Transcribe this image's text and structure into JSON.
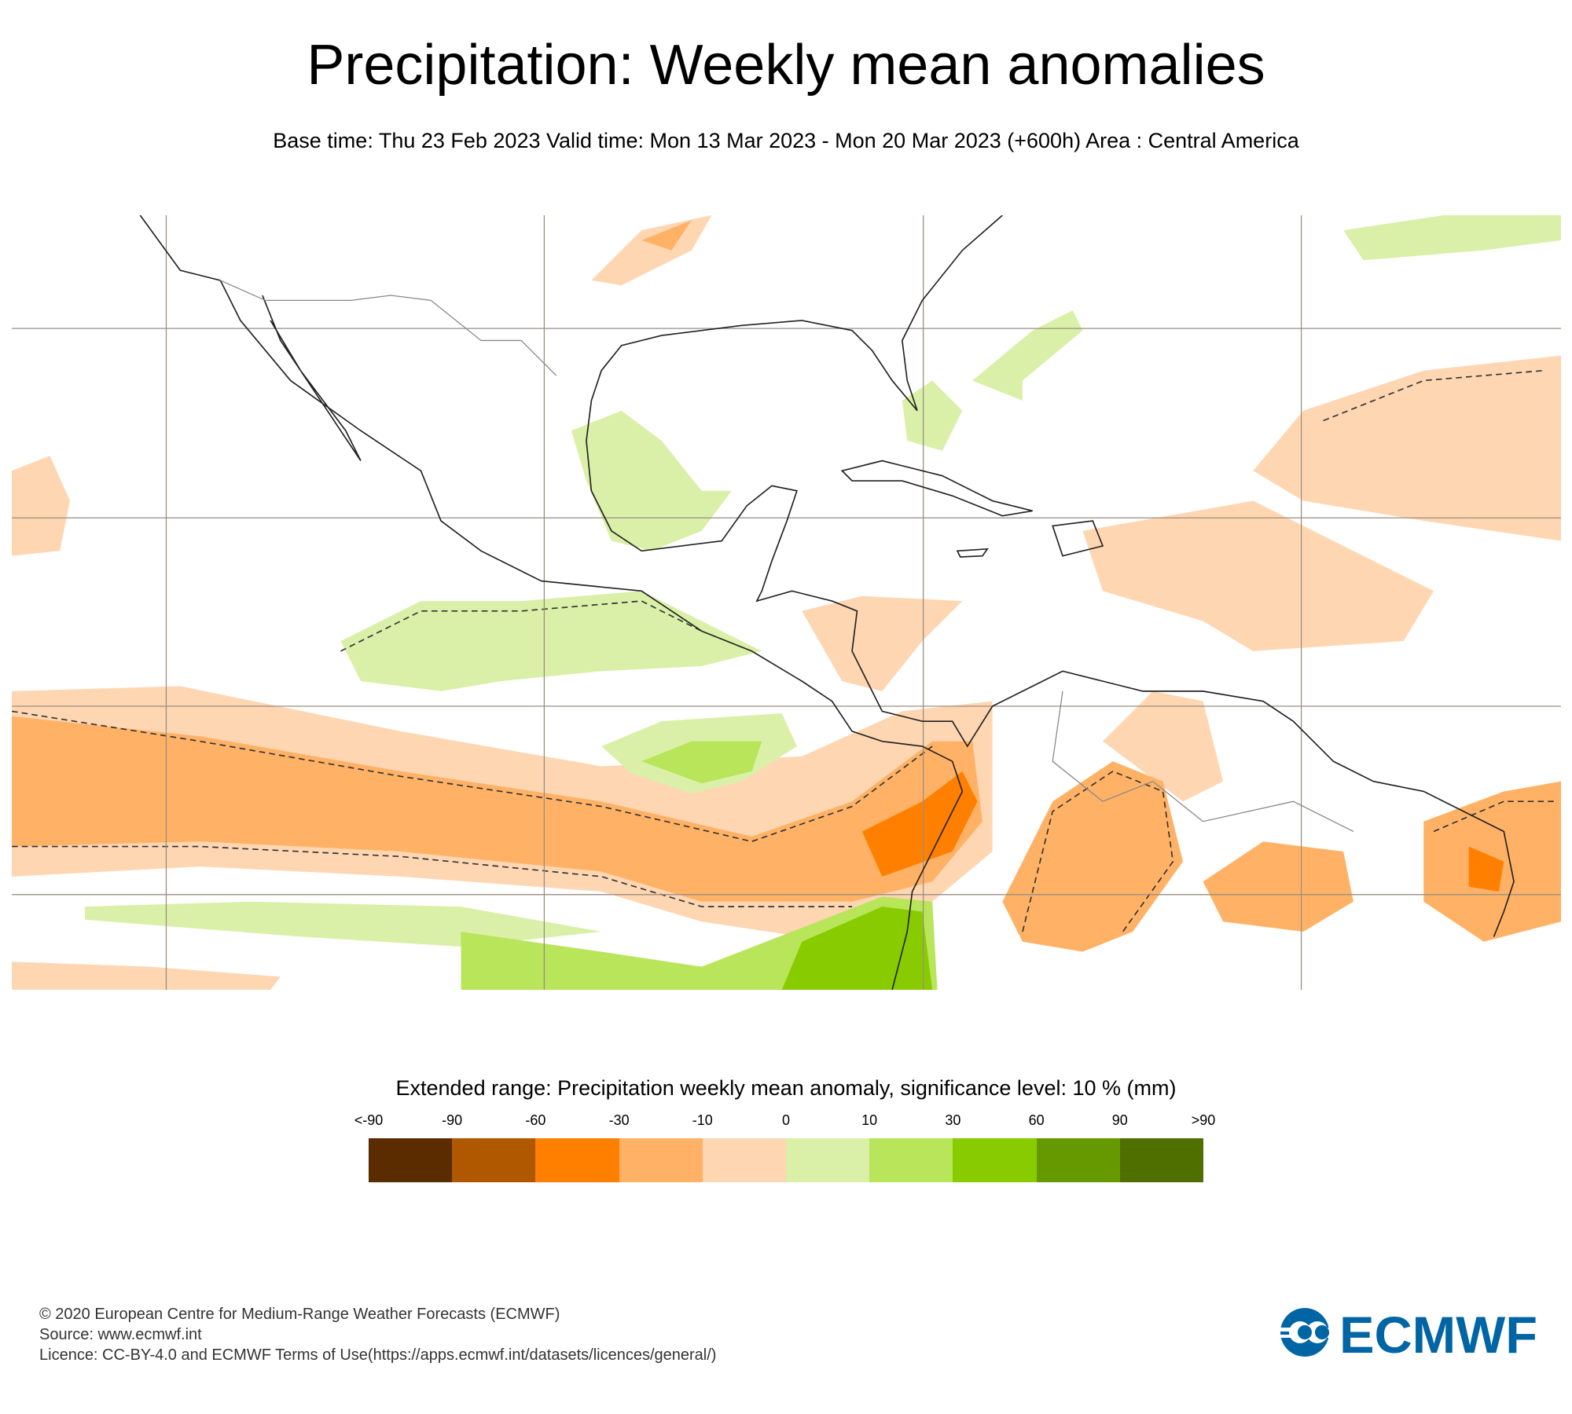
{
  "header": {
    "title": "Precipitation: Weekly mean anomalies",
    "subtitle": "Base time: Thu 23 Feb 2023 Valid time: Mon 13 Mar 2023 - Mon 20 Mar 2023 (+600h) Area : Central America"
  },
  "chart_data": {
    "type": "heatmap",
    "title": "Precipitation: Weekly mean anomalies",
    "area": "Central America",
    "legend_title": "Extended range: Precipitation weekly mean anomaly, significance level: 10 % (mm)",
    "tick_labels": [
      "<-90",
      "-90",
      "-60",
      "-30",
      "-10",
      "0",
      "10",
      "30",
      "60",
      "90",
      ">90"
    ],
    "colors": [
      "#5a2c00",
      "#b05800",
      "#ff8000",
      "#ffb266",
      "#ffd6b2",
      "#daf0a8",
      "#b8e55a",
      "#88cc00",
      "#669900",
      "#4f6f00"
    ],
    "significance_contour": "dashed",
    "grid": true
  },
  "footer": {
    "lines": [
      "© 2020 European Centre for Medium-Range Weather Forecasts (ECMWF)",
      "Source: www.ecmwf.int",
      "Licence: CC-BY-4.0 and ECMWF Terms of Use(https://apps.ecmwf.int/datasets/licences/general/)"
    ],
    "logo_text": "ECMWF",
    "logo_color": "#0065a4"
  }
}
